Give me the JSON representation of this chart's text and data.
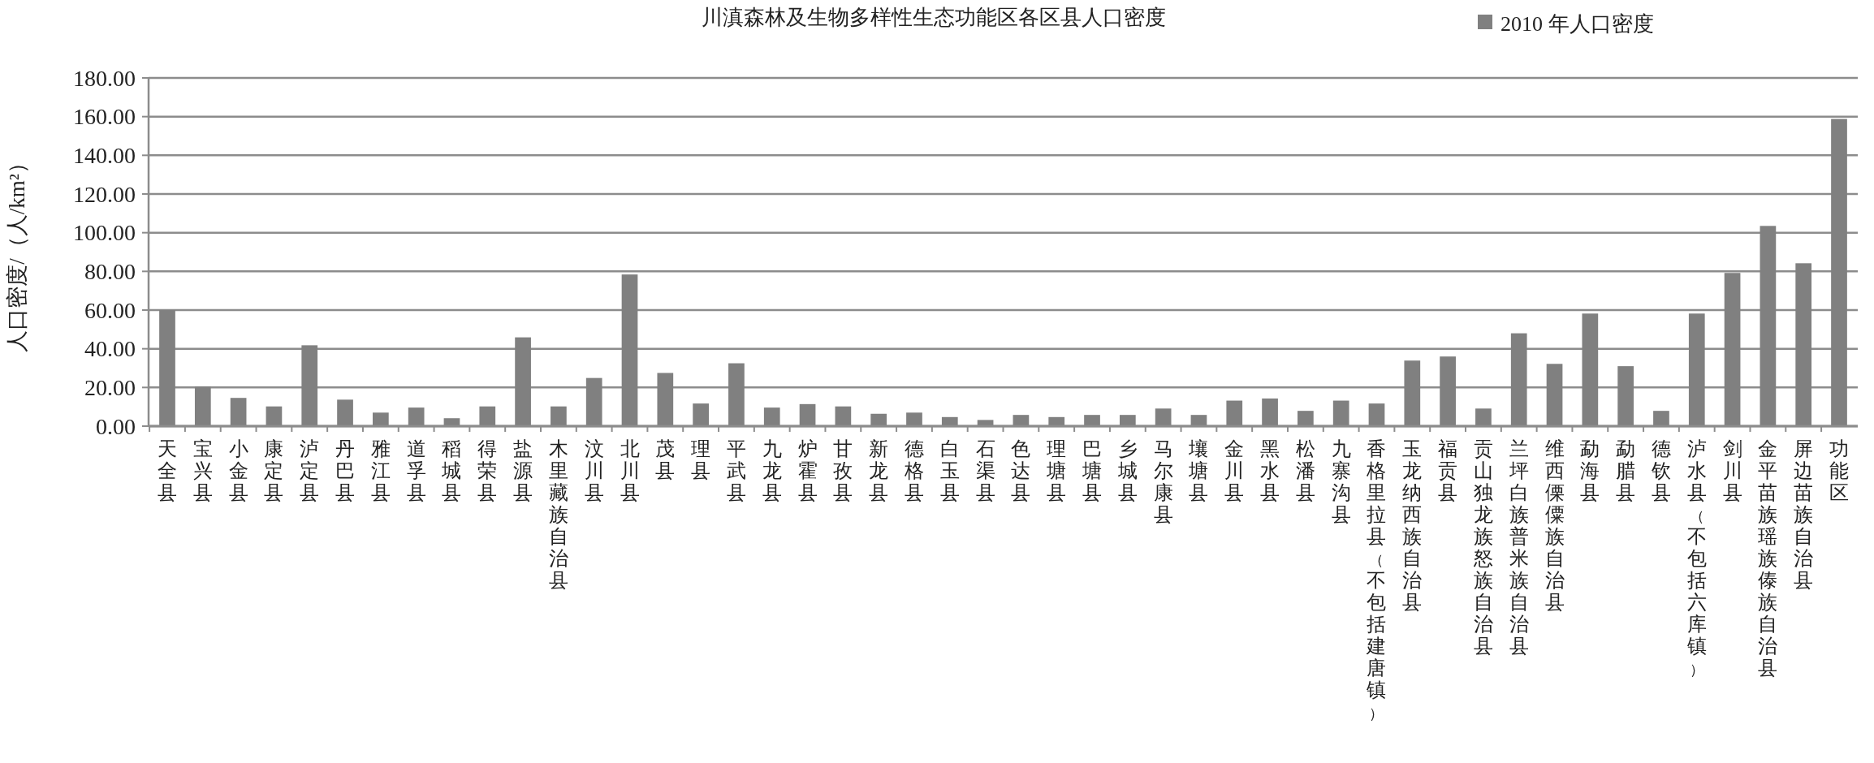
{
  "chart_data": {
    "type": "bar",
    "title": "川滇森林及生物多样性生态功能区各区县人口密度",
    "ylabel": "人口密度/（人/km²）",
    "categories": [
      "天全县",
      "宝兴县",
      "小金县",
      "康定县",
      "泸定县",
      "丹巴县",
      "雅江县",
      "道孚县",
      "稻城县",
      "得荣县",
      "盐源县",
      "木里藏族自治县",
      "汶川县",
      "北川县",
      "茂县",
      "理县",
      "平武县",
      "九龙县",
      "炉霍县",
      "甘孜县",
      "新龙县",
      "德格县",
      "白玉县",
      "石渠县",
      "色达县",
      "理塘县",
      "巴塘县",
      "乡城县",
      "马尔康县",
      "壤塘县",
      "金川县",
      "黑水县",
      "松潘县",
      "九寨沟县",
      "香格里拉县（不包括建唐镇）",
      "玉龙纳西族自治县",
      "福贡县",
      "贡山独龙族怒族自治县",
      "兰坪白族普米族自治县",
      "维西傈僳族自治县",
      "勐海县",
      "勐腊县",
      "德钦县",
      "泸水县（不包括六库镇）",
      "剑川县",
      "金平苗族瑶族傣族自治县",
      "屏边苗族自治县",
      "功能区"
    ],
    "series": [
      {
        "name": "2010 年人口密度",
        "color": "#808080",
        "values": [
          60,
          20.5,
          14.6,
          10.2,
          41.8,
          13.7,
          7,
          9.6,
          4.1,
          10.2,
          45.9,
          10.2,
          24.9,
          78.4,
          27.5,
          11.7,
          32.5,
          9.6,
          11.4,
          10.2,
          6.4,
          7,
          4.7,
          3.2,
          5.8,
          4.7,
          5.8,
          5.8,
          9.1,
          5.8,
          13.2,
          14.3,
          7.9,
          13.2,
          11.7,
          33.9,
          36,
          9.1,
          48,
          32.2,
          58.2,
          31,
          7.9,
          58.2,
          79.2,
          103.5,
          84.2,
          158.8
        ]
      }
    ],
    "ylim": [
      0,
      180
    ],
    "yticks": [
      {
        "value": 0,
        "label": "0.00"
      },
      {
        "value": 20,
        "label": "20.00"
      },
      {
        "value": 40,
        "label": "40.00"
      },
      {
        "value": 60,
        "label": "60.00"
      },
      {
        "value": 80,
        "label": "80.00"
      },
      {
        "value": 100,
        "label": "100.00"
      },
      {
        "value": 120,
        "label": "120.00"
      },
      {
        "value": 140,
        "label": "140.00"
      },
      {
        "value": 160,
        "label": "160.00"
      },
      {
        "value": 180,
        "label": "180.00"
      }
    ],
    "grid": "y",
    "legend": "top right"
  }
}
